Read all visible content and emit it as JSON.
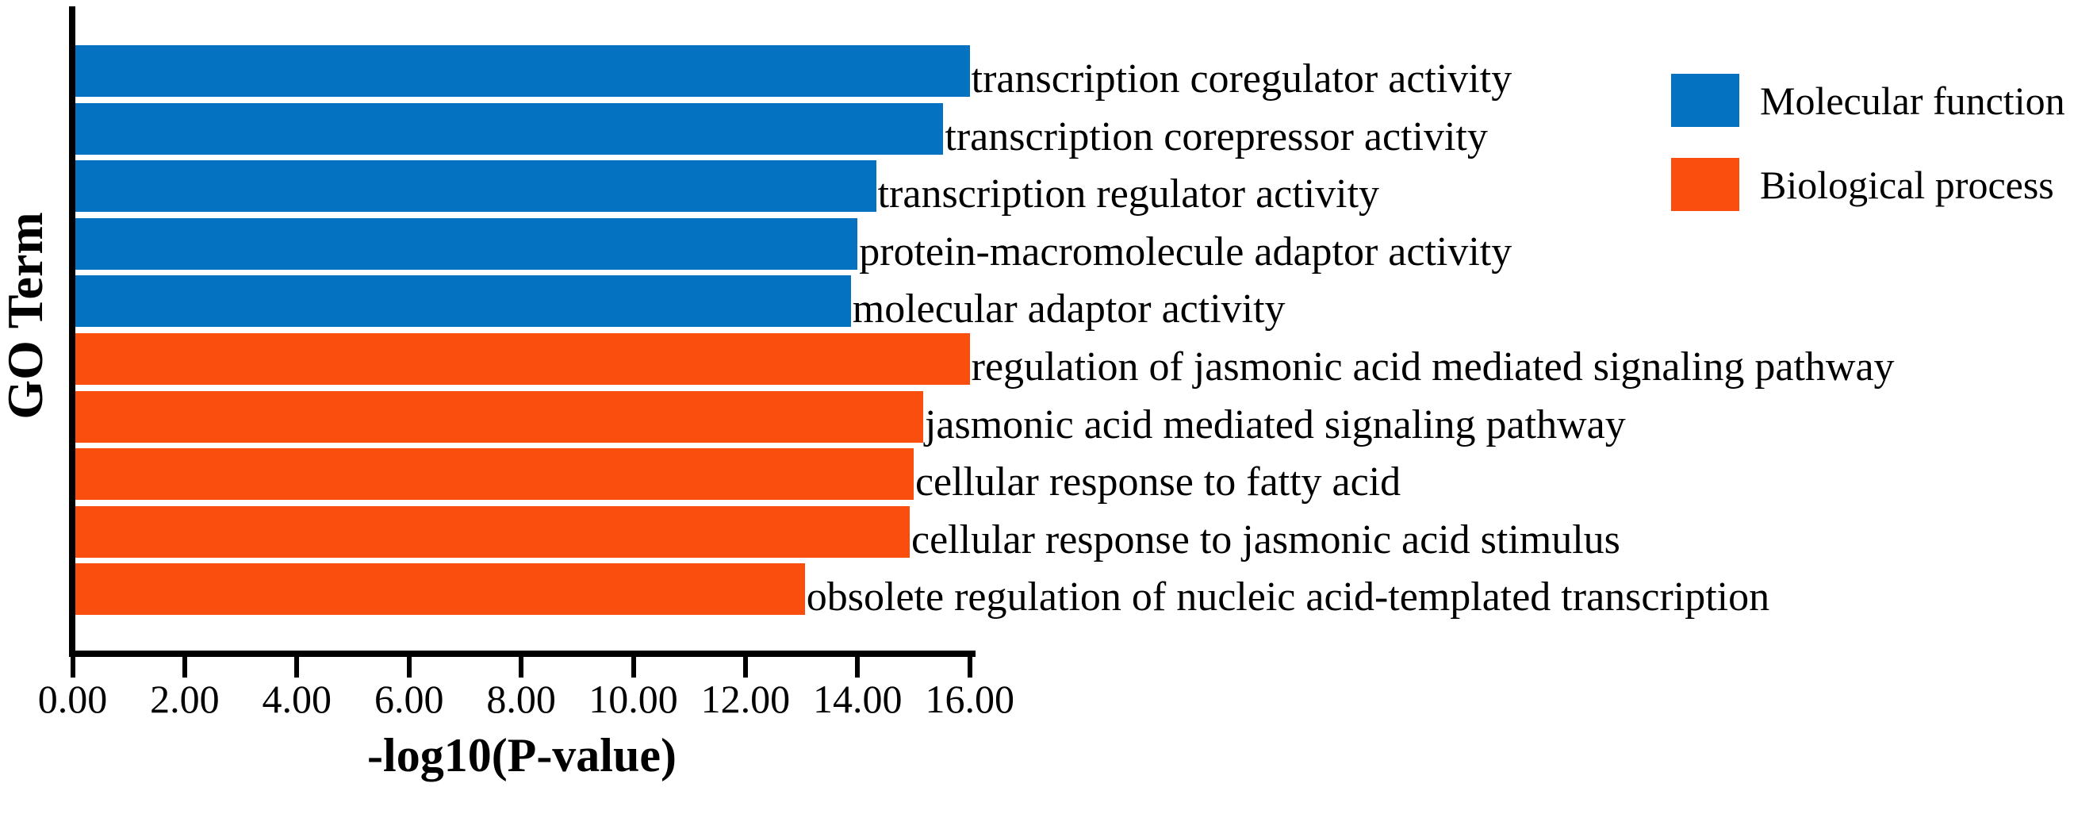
{
  "chart_data": {
    "type": "bar",
    "orientation": "horizontal",
    "title": "",
    "xlabel": "-log10(P-value)",
    "ylabel": "GO Term",
    "xlim": [
      0,
      16
    ],
    "x_ticks": [
      "0.00",
      "2.00",
      "4.00",
      "6.00",
      "8.00",
      "10.00",
      "12.00",
      "14.00",
      "16.00"
    ],
    "grid": false,
    "legend_position": "top-right",
    "bar_label_position": "right-of-bar-end",
    "categories": [
      "transcription coregulator activity",
      "transcription corepressor activity",
      "transcription regulator activity",
      "protein-macromolecule adaptor activity",
      "molecular adaptor activity",
      "regulation of jasmonic acid mediated signaling pathway",
      "jasmonic acid mediated signaling pathway",
      "cellular response to fatty acid",
      "cellular response to jasmonic acid stimulus",
      "obsolete regulation of nucleic acid-templated transcription"
    ],
    "values": [
      15.95,
      15.48,
      14.28,
      13.95,
      13.83,
      15.95,
      15.12,
      14.95,
      14.88,
      13.01
    ],
    "groups": [
      "Molecular function",
      "Molecular function",
      "Molecular function",
      "Molecular function",
      "Molecular function",
      "Biological process",
      "Biological process",
      "Biological process",
      "Biological process",
      "Biological process"
    ],
    "legend": [
      {
        "label": "Molecular function",
        "color": "#0572C1"
      },
      {
        "label": "Biological process",
        "color": "#FA4E0E"
      }
    ],
    "colors": {
      "axis": "#000000",
      "text": "#000000",
      "background": "#ffffff"
    }
  }
}
